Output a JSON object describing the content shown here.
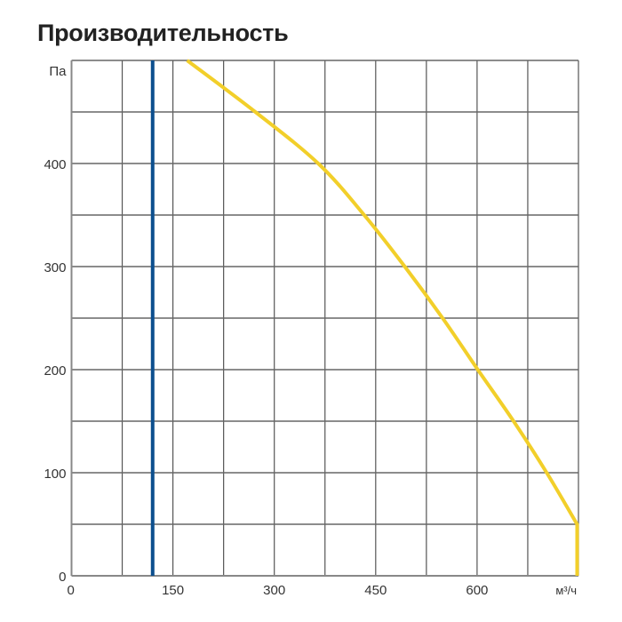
{
  "chart_data": {
    "type": "line",
    "title": "Производительность",
    "xlabel": "м³/ч",
    "ylabel": "Па",
    "xlim": [
      0,
      750
    ],
    "ylim": [
      0,
      500
    ],
    "x_ticks": [
      0,
      150,
      300,
      450,
      600
    ],
    "y_ticks": [
      0,
      100,
      200,
      300,
      400
    ],
    "x_grid_step": 75,
    "y_grid_step": 50,
    "grid": true,
    "series": [
      {
        "color": "#f2cf2a",
        "x": [
          171,
          272,
          365,
          433,
          493,
          549,
          601,
          654,
          703,
          748,
          748
        ],
        "y": [
          500,
          450,
          400,
          350,
          300,
          250,
          200,
          150,
          100,
          50,
          0
        ]
      }
    ],
    "vertical_lines": [
      {
        "color": "#0d4f8e",
        "x": 120
      }
    ]
  }
}
